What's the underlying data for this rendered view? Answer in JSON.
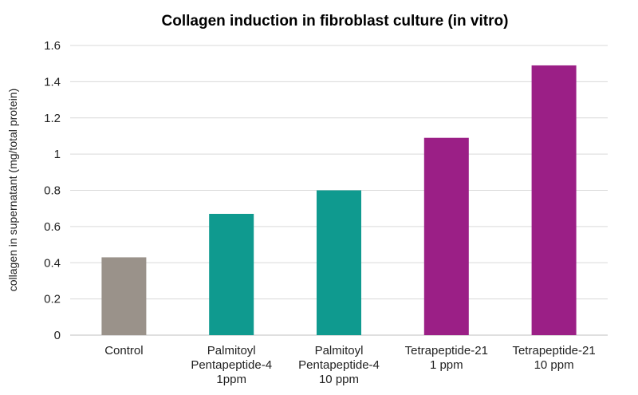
{
  "chart_data": {
    "type": "bar",
    "title": "Collagen induction in fibroblast culture (in vitro)",
    "xlabel": "",
    "ylabel": "collagen in supernatant (mg/total protein)",
    "ylim": [
      0,
      1.6
    ],
    "yticks": [
      "0",
      "0.2",
      "0.4",
      "0.6",
      "0.8",
      "1",
      "1.2",
      "1.4",
      "1.6"
    ],
    "grid": true,
    "categories": [
      [
        "Control"
      ],
      [
        "Palmitoyl",
        "Pentapeptide-4",
        "1ppm"
      ],
      [
        "Palmitoyl",
        "Pentapeptide-4",
        "10 ppm"
      ],
      [
        "Tetrapeptide-21",
        "1 ppm"
      ],
      [
        "Tetrapeptide-21",
        "10 ppm"
      ]
    ],
    "values": [
      0.43,
      0.67,
      0.8,
      1.09,
      1.49
    ],
    "colors": [
      "#9a928a",
      "#0f9a8f",
      "#0f9a8f",
      "#9b1f86",
      "#9b1f86"
    ]
  }
}
